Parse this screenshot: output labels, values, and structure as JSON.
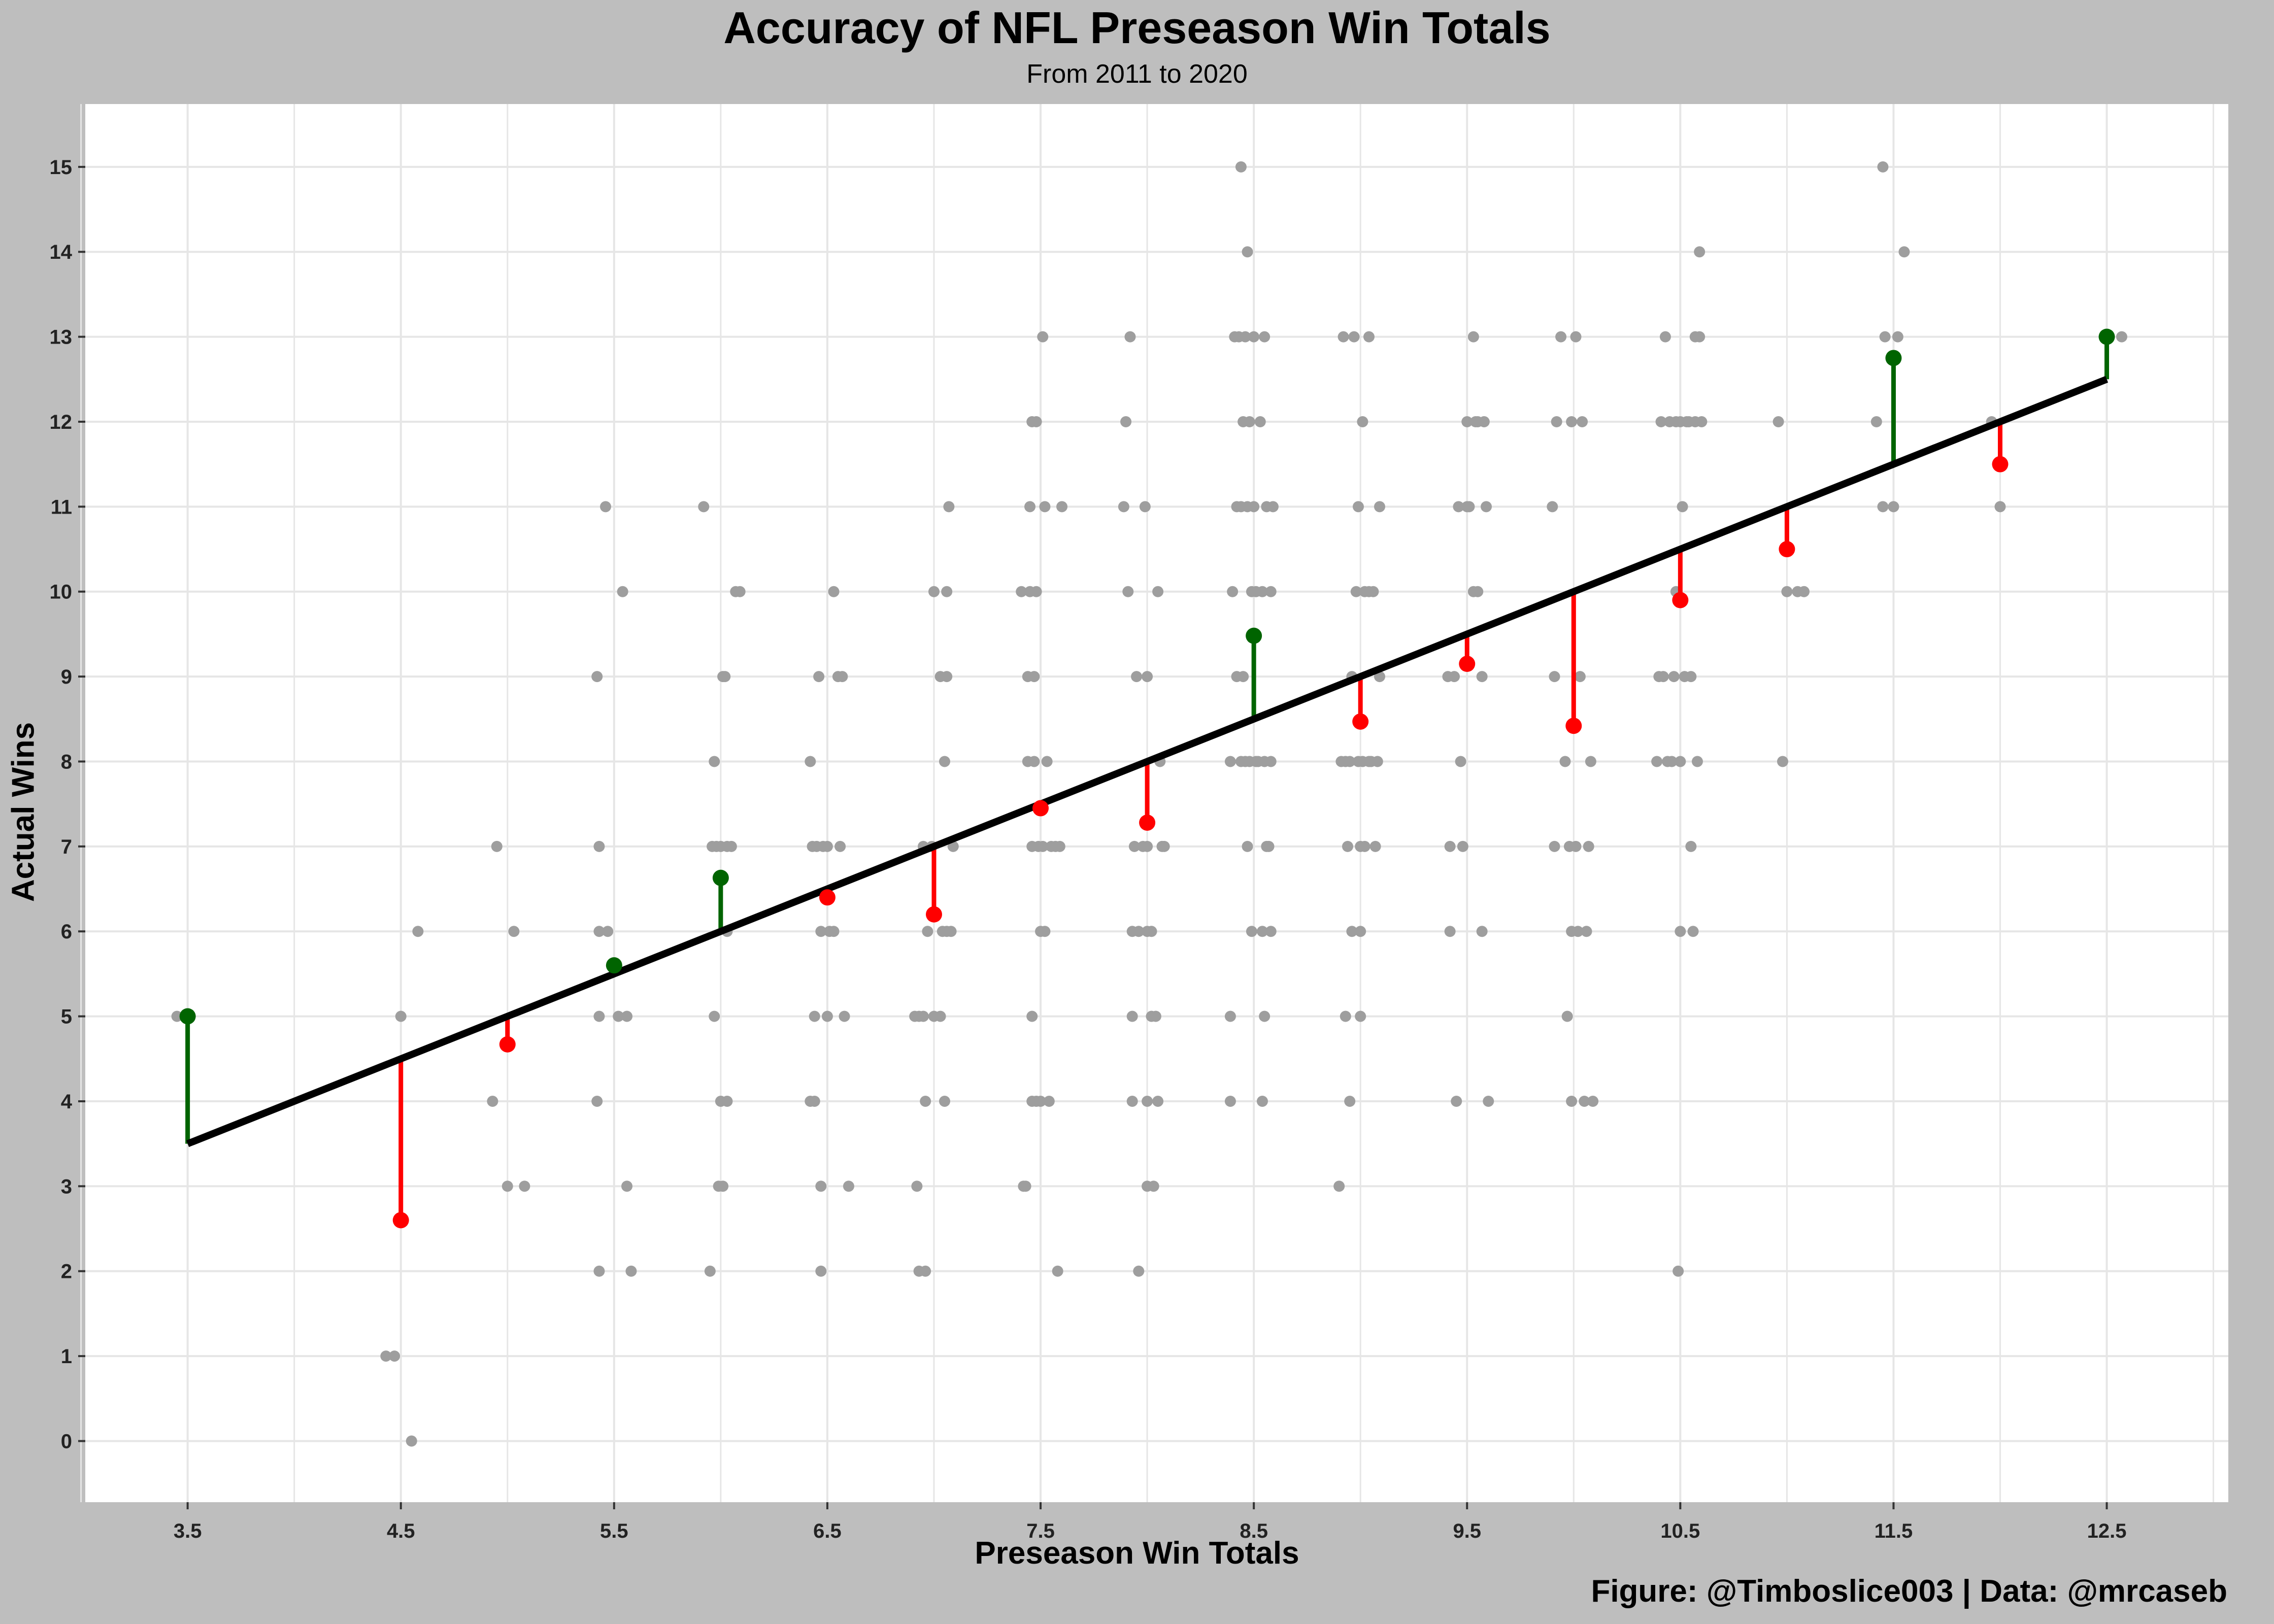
{
  "chart_data": {
    "type": "scatter",
    "title": "Accuracy of NFL Preseason Win Totals",
    "subtitle": "From 2011 to 2020",
    "xlabel": "Preseason Win Totals",
    "ylabel": "Actual Wins",
    "caption": "Figure: @Timboslice003 | Data: @mrcaseb",
    "xlim": [
      3.02,
      13.07
    ],
    "ylim": [
      -0.72,
      15.74
    ],
    "x_ticks": [
      "3.5",
      "4.5",
      "5.5",
      "6.5",
      "7.5",
      "8.5",
      "9.5",
      "10.5",
      "11.5",
      "12.5"
    ],
    "y_ticks": [
      "0",
      "1",
      "2",
      "3",
      "4",
      "5",
      "6",
      "7",
      "8",
      "9",
      "10",
      "11",
      "12",
      "13",
      "14",
      "15"
    ],
    "grid": true,
    "colors": {
      "background": "#bebebe",
      "panel": "#ffffff",
      "grid": "#e6e6e6",
      "points": "#9e9e9e",
      "line": "#000000",
      "above": "#006400",
      "below": "#ff0000"
    },
    "series": [
      {
        "kind": "team_seasons",
        "points": [
          [
            3.45,
            5
          ],
          [
            3.5,
            5
          ],
          [
            4.43,
            1
          ],
          [
            4.47,
            1
          ],
          [
            4.5,
            5
          ],
          [
            4.55,
            0
          ],
          [
            4.58,
            6
          ],
          [
            4.93,
            4
          ],
          [
            4.95,
            7
          ],
          [
            5,
            3
          ],
          [
            5.03,
            6
          ],
          [
            5.08,
            3
          ],
          [
            5.42,
            9
          ],
          [
            5.43,
            2
          ],
          [
            5.42,
            4
          ],
          [
            5.43,
            5
          ],
          [
            5.43,
            6
          ],
          [
            5.43,
            7
          ],
          [
            5.46,
            11
          ],
          [
            5.47,
            6
          ],
          [
            5.52,
            5
          ],
          [
            5.54,
            10
          ],
          [
            5.56,
            5
          ],
          [
            5.56,
            3
          ],
          [
            5.58,
            2
          ],
          [
            5.92,
            11
          ],
          [
            5.95,
            2
          ],
          [
            5.96,
            7
          ],
          [
            5.97,
            8
          ],
          [
            5.97,
            5
          ],
          [
            5.98,
            7
          ],
          [
            5.99,
            3
          ],
          [
            6,
            4
          ],
          [
            6,
            7
          ],
          [
            6.01,
            3
          ],
          [
            6.01,
            9
          ],
          [
            6.02,
            9
          ],
          [
            6.03,
            6
          ],
          [
            6.03,
            4
          ],
          [
            6.03,
            7
          ],
          [
            6.05,
            7
          ],
          [
            6.07,
            10
          ],
          [
            6.09,
            10
          ],
          [
            6.42,
            8
          ],
          [
            6.42,
            4
          ],
          [
            6.43,
            7
          ],
          [
            6.44,
            4
          ],
          [
            6.44,
            5
          ],
          [
            6.45,
            7
          ],
          [
            6.46,
            9
          ],
          [
            6.47,
            2
          ],
          [
            6.47,
            6
          ],
          [
            6.47,
            3
          ],
          [
            6.48,
            7
          ],
          [
            6.5,
            5
          ],
          [
            6.5,
            7
          ],
          [
            6.51,
            6
          ],
          [
            6.53,
            10
          ],
          [
            6.53,
            6
          ],
          [
            6.55,
            9
          ],
          [
            6.56,
            7
          ],
          [
            6.57,
            9
          ],
          [
            6.58,
            5
          ],
          [
            6.6,
            3
          ],
          [
            6.91,
            5
          ],
          [
            6.92,
            3
          ],
          [
            6.93,
            5
          ],
          [
            6.93,
            2
          ],
          [
            6.95,
            5
          ],
          [
            6.95,
            7
          ],
          [
            6.96,
            2
          ],
          [
            6.96,
            4
          ],
          [
            6.97,
            6
          ],
          [
            6.99,
            7
          ],
          [
            7,
            5
          ],
          [
            7,
            10
          ],
          [
            7.03,
            9
          ],
          [
            7.03,
            5
          ],
          [
            7.04,
            6
          ],
          [
            7.05,
            4
          ],
          [
            7.05,
            8
          ],
          [
            7.06,
            10
          ],
          [
            7.06,
            9
          ],
          [
            7.06,
            6
          ],
          [
            7.07,
            11
          ],
          [
            7.08,
            6
          ],
          [
            7.09,
            7
          ],
          [
            7.41,
            10
          ],
          [
            7.42,
            3
          ],
          [
            7.43,
            3
          ],
          [
            7.44,
            8
          ],
          [
            7.44,
            9
          ],
          [
            7.45,
            11
          ],
          [
            7.45,
            10
          ],
          [
            7.46,
            12
          ],
          [
            7.46,
            5
          ],
          [
            7.46,
            7
          ],
          [
            7.46,
            4
          ],
          [
            7.47,
            8
          ],
          [
            7.47,
            9
          ],
          [
            7.48,
            4
          ],
          [
            7.48,
            12
          ],
          [
            7.48,
            10
          ],
          [
            7.49,
            7
          ],
          [
            7.5,
            6
          ],
          [
            7.5,
            4
          ],
          [
            7.51,
            13
          ],
          [
            7.51,
            7
          ],
          [
            7.52,
            11
          ],
          [
            7.52,
            6
          ],
          [
            7.53,
            8
          ],
          [
            7.54,
            4
          ],
          [
            7.55,
            7
          ],
          [
            7.57,
            7
          ],
          [
            7.58,
            2
          ],
          [
            7.59,
            7
          ],
          [
            7.6,
            11
          ],
          [
            7.89,
            11
          ],
          [
            7.9,
            12
          ],
          [
            7.91,
            10
          ],
          [
            7.92,
            13
          ],
          [
            7.93,
            4
          ],
          [
            7.93,
            6
          ],
          [
            7.93,
            5
          ],
          [
            7.94,
            7
          ],
          [
            7.95,
            9
          ],
          [
            7.96,
            2
          ],
          [
            7.96,
            6
          ],
          [
            7.98,
            7
          ],
          [
            7.99,
            11
          ],
          [
            8,
            3
          ],
          [
            8,
            6
          ],
          [
            8,
            9
          ],
          [
            8,
            4
          ],
          [
            8,
            7
          ],
          [
            8.02,
            6
          ],
          [
            8.02,
            5
          ],
          [
            8.03,
            3
          ],
          [
            8.04,
            5
          ],
          [
            8.05,
            4
          ],
          [
            8.05,
            10
          ],
          [
            8.07,
            7
          ],
          [
            8.08,
            7
          ],
          [
            8.06,
            8
          ],
          [
            8.39,
            8
          ],
          [
            8.39,
            4
          ],
          [
            8.39,
            5
          ],
          [
            8.4,
            10
          ],
          [
            8.41,
            13
          ],
          [
            8.42,
            11
          ],
          [
            8.42,
            9
          ],
          [
            8.43,
            13
          ],
          [
            8.44,
            8
          ],
          [
            8.44,
            11
          ],
          [
            8.44,
            15
          ],
          [
            8.45,
            12
          ],
          [
            8.45,
            9
          ],
          [
            8.46,
            8
          ],
          [
            8.46,
            13
          ],
          [
            8.47,
            11
          ],
          [
            8.47,
            7
          ],
          [
            8.47,
            14
          ],
          [
            8.48,
            12
          ],
          [
            8.48,
            8
          ],
          [
            8.49,
            6
          ],
          [
            8.49,
            10
          ],
          [
            8.5,
            13
          ],
          [
            8.5,
            11
          ],
          [
            8.51,
            8
          ],
          [
            8.51,
            10
          ],
          [
            8.52,
            8
          ],
          [
            8.53,
            12
          ],
          [
            8.54,
            10
          ],
          [
            8.54,
            4
          ],
          [
            8.54,
            6
          ],
          [
            8.55,
            8
          ],
          [
            8.55,
            13
          ],
          [
            8.55,
            5
          ],
          [
            8.56,
            7
          ],
          [
            8.56,
            11
          ],
          [
            8.57,
            7
          ],
          [
            8.58,
            6
          ],
          [
            8.58,
            10
          ],
          [
            8.58,
            8
          ],
          [
            8.59,
            11
          ],
          [
            8.9,
            3
          ],
          [
            8.91,
            8
          ],
          [
            8.92,
            13
          ],
          [
            8.93,
            8
          ],
          [
            8.93,
            5
          ],
          [
            8.94,
            7
          ],
          [
            8.95,
            4
          ],
          [
            8.95,
            8
          ],
          [
            8.96,
            9
          ],
          [
            8.96,
            6
          ],
          [
            8.97,
            13
          ],
          [
            8.98,
            10
          ],
          [
            8.99,
            11
          ],
          [
            8.99,
            8
          ],
          [
            9,
            7
          ],
          [
            9,
            5
          ],
          [
            9,
            6
          ],
          [
            9.01,
            12
          ],
          [
            9.01,
            8
          ],
          [
            9.02,
            10
          ],
          [
            9.02,
            7
          ],
          [
            9.04,
            10
          ],
          [
            9.04,
            8
          ],
          [
            9.04,
            13
          ],
          [
            9.05,
            8
          ],
          [
            9.06,
            10
          ],
          [
            9.07,
            7
          ],
          [
            9.08,
            8
          ],
          [
            9.09,
            9
          ],
          [
            9.09,
            11
          ],
          [
            9.41,
            9
          ],
          [
            9.42,
            7
          ],
          [
            9.42,
            6
          ],
          [
            9.44,
            9
          ],
          [
            9.45,
            4
          ],
          [
            9.46,
            11
          ],
          [
            9.47,
            8
          ],
          [
            9.48,
            7
          ],
          [
            9.5,
            11
          ],
          [
            9.5,
            12
          ],
          [
            9.51,
            11
          ],
          [
            9.53,
            13
          ],
          [
            9.53,
            10
          ],
          [
            9.54,
            12
          ],
          [
            9.55,
            10
          ],
          [
            9.55,
            12
          ],
          [
            9.57,
            9
          ],
          [
            9.57,
            6
          ],
          [
            9.58,
            12
          ],
          [
            9.59,
            11
          ],
          [
            9.6,
            4
          ],
          [
            9.9,
            11
          ],
          [
            9.91,
            7
          ],
          [
            9.91,
            9
          ],
          [
            9.92,
            12
          ],
          [
            9.94,
            13
          ],
          [
            9.96,
            8
          ],
          [
            9.97,
            5
          ],
          [
            9.98,
            7
          ],
          [
            9.99,
            6
          ],
          [
            9.99,
            4
          ],
          [
            9.99,
            12
          ],
          [
            10.01,
            13
          ],
          [
            10.01,
            7
          ],
          [
            10.02,
            6
          ],
          [
            10.03,
            9
          ],
          [
            10.04,
            12
          ],
          [
            10.05,
            4
          ],
          [
            10.06,
            6
          ],
          [
            10.07,
            7
          ],
          [
            10.08,
            8
          ],
          [
            10.09,
            4
          ],
          [
            10.39,
            8
          ],
          [
            10.4,
            9
          ],
          [
            10.41,
            12
          ],
          [
            10.42,
            9
          ],
          [
            10.43,
            13
          ],
          [
            10.44,
            8
          ],
          [
            10.45,
            12
          ],
          [
            10.46,
            8
          ],
          [
            10.47,
            9
          ],
          [
            10.48,
            10
          ],
          [
            10.48,
            12
          ],
          [
            10.49,
            2
          ],
          [
            10.5,
            8
          ],
          [
            10.5,
            12
          ],
          [
            10.5,
            6
          ],
          [
            10.51,
            11
          ],
          [
            10.52,
            9
          ],
          [
            10.53,
            12
          ],
          [
            10.54,
            12
          ],
          [
            10.55,
            9
          ],
          [
            10.55,
            7
          ],
          [
            10.56,
            6
          ],
          [
            10.57,
            12
          ],
          [
            10.57,
            13
          ],
          [
            10.58,
            8
          ],
          [
            10.59,
            13
          ],
          [
            10.59,
            14
          ],
          [
            10.6,
            12
          ],
          [
            10.96,
            12
          ],
          [
            10.98,
            8
          ],
          [
            11,
            10
          ],
          [
            11.05,
            10
          ],
          [
            11.08,
            10
          ],
          [
            11.42,
            12
          ],
          [
            11.45,
            15
          ],
          [
            11.45,
            11
          ],
          [
            11.46,
            13
          ],
          [
            11.5,
            11
          ],
          [
            11.52,
            13
          ],
          [
            11.55,
            14
          ],
          [
            11.96,
            12
          ],
          [
            12,
            11
          ],
          [
            12.5,
            13
          ],
          [
            12.57,
            13
          ]
        ]
      },
      {
        "kind": "average_actual_wins",
        "points": [
          [
            3.5,
            5.0
          ],
          [
            4.5,
            2.6
          ],
          [
            5.0,
            4.67
          ],
          [
            5.5,
            5.6
          ],
          [
            6.0,
            6.63
          ],
          [
            6.5,
            6.4
          ],
          [
            7.0,
            6.2
          ],
          [
            7.5,
            7.45
          ],
          [
            8.0,
            7.28
          ],
          [
            8.5,
            9.48
          ],
          [
            9.0,
            8.47
          ],
          [
            9.5,
            9.15
          ],
          [
            10.0,
            8.42
          ],
          [
            10.5,
            9.9
          ],
          [
            11.0,
            10.5
          ],
          [
            11.5,
            12.75
          ],
          [
            12.0,
            11.5
          ],
          [
            12.5,
            13.0
          ]
        ]
      },
      {
        "kind": "reference_line",
        "points": [
          [
            3.5,
            3.5
          ],
          [
            12.5,
            12.5
          ]
        ]
      }
    ]
  }
}
